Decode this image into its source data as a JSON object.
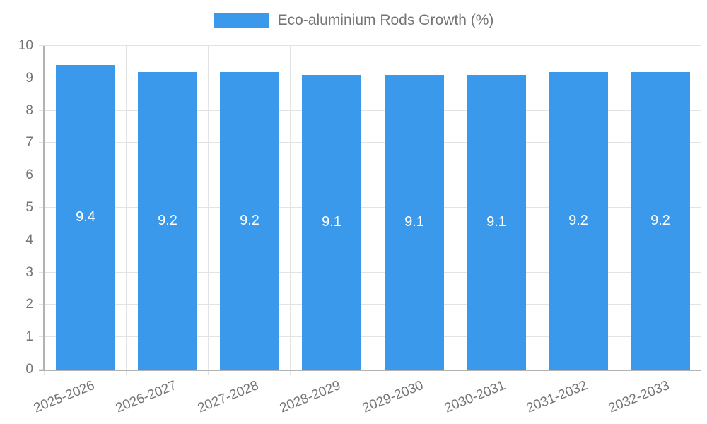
{
  "legend": {
    "label": "Eco-aluminium Rods Growth (%)"
  },
  "chart_data": {
    "type": "bar",
    "title": "Eco-aluminium Rods Growth (%)",
    "categories": [
      "2025-2026",
      "2026-2027",
      "2027-2028",
      "2028-2029",
      "2029-2030",
      "2030-2031",
      "2031-2032",
      "2032-2033"
    ],
    "series": [
      {
        "name": "Eco-aluminium Rods Growth (%)",
        "values": [
          9.4,
          9.2,
          9.2,
          9.1,
          9.1,
          9.1,
          9.2,
          9.2
        ]
      }
    ],
    "bar_labels": [
      "9.4",
      "9.2",
      "9.2",
      "9.1",
      "9.1",
      "9.1",
      "9.2",
      "9.2"
    ],
    "xlabel": "",
    "ylabel": "",
    "ylim": [
      0,
      10
    ],
    "ytick_step": 1,
    "ytick_labels": [
      "0",
      "1",
      "2",
      "3",
      "4",
      "5",
      "6",
      "7",
      "8",
      "9",
      "10"
    ],
    "grid": true,
    "legend_position": "top",
    "colors": {
      "bar": "#3b99ec",
      "bar_label": "#ffffff",
      "axis_text": "#757575",
      "grid_line": "#e3e3e3",
      "axis_line": "#b3b3b3"
    }
  }
}
